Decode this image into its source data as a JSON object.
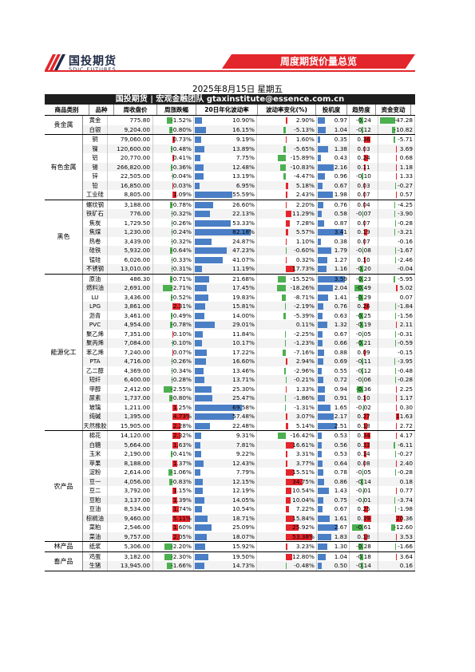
{
  "header": {
    "logo_cn": "国投期货",
    "logo_en": "SDIC FUTURES",
    "banner": "周度期货价量总览"
  },
  "date": "2025年8月15日 星期五",
  "title_bar": "国投期货 | 宏观金融团队 gtaxinstitute@essence.com.cn",
  "columns": [
    "商品类别",
    "品种",
    "周收盘价",
    "周涨跌幅",
    "20日年化波动率",
    "波动率变化(%)",
    "投机度",
    "趋势度",
    "资金变动"
  ],
  "groups": [
    {
      "name": "贵金属",
      "rows": [
        [
          "黄金",
          "775.80",
          "-1.52%",
          "10.90%",
          "2.90%",
          "0.97",
          "-0.24",
          "-47.28"
        ],
        [
          "白银",
          "9,204.00",
          "-0.80%",
          "16.15%",
          "-5.13%",
          "1.04",
          "-0.12",
          "-10.82"
        ]
      ]
    },
    {
      "name": "有色金属",
      "rows": [
        [
          "铜",
          "79,060.00",
          "0.73%",
          "9.19%",
          "1.60%",
          "0.35",
          "0.36",
          "-5.71"
        ],
        [
          "镍",
          "120,600.00",
          "-0.48%",
          "13.89%",
          "-5.65%",
          "1.38",
          "0.03",
          "3.69"
        ],
        [
          "铝",
          "20,770.00",
          "0.41%",
          "7.75%",
          "-15.89%",
          "0.43",
          "0.24",
          "0.68"
        ],
        [
          "锡",
          "266,820.00",
          "-0.36%",
          "12.48%",
          "-10.83%",
          "2.16",
          "0.11",
          "1.18"
        ],
        [
          "锌",
          "22,505.00",
          "-0.04%",
          "13.19%",
          "-4.47%",
          "0.96",
          "-0.10",
          "1.33"
        ],
        [
          "铅",
          "16,850.00",
          "0.03%",
          "6.95%",
          "5.18%",
          "0.67",
          "0.03",
          "-0.27"
        ],
        [
          "工业硅",
          "8,805.00",
          "1.09%",
          "55.59%",
          "2.43%",
          "1.98",
          "0.07",
          "0.57"
        ]
      ]
    },
    {
      "name": "黑色",
      "rows": [
        [
          "螺纹钢",
          "3,188.00",
          "-0.78%",
          "26.60%",
          "2.20%",
          "0.76",
          "0.04",
          "-4.25"
        ],
        [
          "铁矿石",
          "776.00",
          "-0.32%",
          "22.13%",
          "11.29%",
          "0.58",
          "-0.07",
          "-3.90"
        ],
        [
          "焦炭",
          "1,729.50",
          "-0.26%",
          "53.33%",
          "7.28%",
          "0.87",
          "0.07",
          "-0.28"
        ],
        [
          "焦煤",
          "1,230.00",
          "-0.24%",
          "82.18%",
          "5.57%",
          "3.41",
          "0.19",
          "-3.21"
        ],
        [
          "热卷",
          "3,439.00",
          "-0.32%",
          "24.87%",
          "1.10%",
          "0.38",
          "0.07",
          "-0.16"
        ],
        [
          "硅铁",
          "5,932.00",
          "-0.64%",
          "47.23%",
          "-0.60%",
          "1.79",
          "-0.08",
          "-1.67"
        ],
        [
          "锰硅",
          "6,026.00",
          "-0.33%",
          "41.07%",
          "0.32%",
          "1.27",
          "0.10",
          "-2.46"
        ],
        [
          "不锈钢",
          "13,010.00",
          "-0.31%",
          "11.19%",
          "17.73%",
          "1.16",
          "-0.20",
          "-0.04"
        ]
      ]
    },
    {
      "name": "能源化工",
      "rows": [
        [
          "原油",
          "486.30",
          "-0.71%",
          "21.68%",
          "-15.52%",
          "3.59",
          "-0.23",
          "-5.95"
        ],
        [
          "燃料油",
          "2,691.00",
          "-2.71%",
          "17.45%",
          "-18.26%",
          "2.04",
          "-0.49",
          "5.02"
        ],
        [
          "LU",
          "3,436.00",
          "-0.52%",
          "19.83%",
          "-8.71%",
          "1.41",
          "-0.29",
          "0.07"
        ],
        [
          "LPG",
          "3,861.00",
          "2.31%",
          "15.81%",
          "-2.19%",
          "0.76",
          "0.26",
          "-1.84"
        ],
        [
          "沥青",
          "3,461.00",
          "-0.49%",
          "14.00%",
          "-5.39%",
          "0.63",
          "-0.25",
          "-1.56"
        ],
        [
          "PVC",
          "4,954.00",
          "-0.78%",
          "29.01%",
          "0.11%",
          "1.32",
          "-0.19",
          "2.11"
        ],
        [
          "聚乙烯",
          "7,351.00",
          "0.10%",
          "11.84%",
          "-2.25%",
          "0.67",
          "-0.05",
          "-0.31"
        ],
        [
          "聚丙烯",
          "7,084.00",
          "-0.10%",
          "10.17%",
          "-1.23%",
          "0.66",
          "-0.21",
          "-0.59"
        ],
        [
          "苯乙烯",
          "7,240.00",
          "0.07%",
          "17.22%",
          "-7.16%",
          "0.88",
          "0.09",
          "-0.15"
        ],
        [
          "PTA",
          "4,716.00",
          "-0.26%",
          "16.60%",
          "2.94%",
          "0.69",
          "-0.11",
          "-3.95"
        ],
        [
          "乙二醇",
          "4,369.00",
          "-0.34%",
          "13.46%",
          "-2.96%",
          "0.55",
          "-0.12",
          "-0.48"
        ],
        [
          "短纤",
          "6,400.00",
          "-0.28%",
          "13.71%",
          "-0.21%",
          "0.72",
          "-0.06",
          "-0.28"
        ],
        [
          "甲醇",
          "2,412.00",
          "-2.55%",
          "25.30%",
          "1.33%",
          "0.94",
          "-0.36",
          "2.25"
        ],
        [
          "尿素",
          "1,737.00",
          "-0.80%",
          "25.47%",
          "-1.86%",
          "0.91",
          "0.10",
          "1.17"
        ],
        [
          "玻璃",
          "1,211.00",
          "1.25%",
          "69.58%",
          "-1.31%",
          "1.65",
          "-0.02",
          "0.30"
        ],
        [
          "纯碱",
          "1,395.00",
          "4.73%",
          "57.48%",
          "3.07%",
          "2.17",
          "0.27",
          "11.63"
        ],
        [
          "天然橡胶",
          "15,905.00",
          "2.28%",
          "22.48%",
          "5.14%",
          "2.51",
          "0.18",
          "2.72"
        ]
      ]
    },
    {
      "name": "农产品",
      "rows": [
        [
          "棉花",
          "14,120.00",
          "2.32%",
          "9.31%",
          "-16.42%",
          "0.53",
          "0.34",
          "4.17"
        ],
        [
          "白糖",
          "5,664.00",
          "1.63%",
          "7.81%",
          "16.61%",
          "0.56",
          "0.33",
          "-6.11"
        ],
        [
          "玉米",
          "2,190.00",
          "-0.41%",
          "9.22%",
          "3.31%",
          "0.53",
          "0.14",
          "-0.27"
        ],
        [
          "苹果",
          "8,188.00",
          "1.37%",
          "12.43%",
          "3.77%",
          "0.64",
          "0.08",
          "2.40"
        ],
        [
          "淀粉",
          "2,614.00",
          "-1.06%",
          "7.79%",
          "15.51%",
          "0.78",
          "-0.05",
          "-0.28"
        ],
        [
          "豆一",
          "4,056.00",
          "-0.83%",
          "12.15%",
          "34.75%",
          "0.86",
          "-0.14",
          "0.18"
        ],
        [
          "豆二",
          "3,792.00",
          "1.15%",
          "12.19%",
          "10.54%",
          "1.43",
          "-0.01",
          "0.77"
        ],
        [
          "豆粕",
          "3,137.00",
          "1.39%",
          "14.05%",
          "10.04%",
          "0.75",
          "-0.01",
          "-3.74"
        ],
        [
          "豆油",
          "8,534.00",
          "1.74%",
          "10.54%",
          "7.22%",
          "0.67",
          "0.25",
          "-1.98"
        ],
        [
          "棕榈油",
          "9,460.00",
          "5.11%",
          "18.71%",
          "15.84%",
          "1.61",
          "0.39",
          "20.36"
        ],
        [
          "菜粕",
          "2,546.00",
          "1.60%",
          "25.09%",
          "25.92%",
          "2.67",
          "-0.61",
          "-12.60"
        ],
        [
          "菜油",
          "9,757.00",
          "2.05%",
          "18.07%",
          "53.38%",
          "1.83",
          "0.18",
          "3.53"
        ]
      ]
    },
    {
      "name": "林产品",
      "rows": [
        [
          "纸浆",
          "5,306.00",
          "-2.20%",
          "15.92%",
          "3.23%",
          "1.30",
          "-0.28",
          "-1.66"
        ]
      ]
    },
    {
      "name": "畜产品",
      "rows": [
        [
          "鸡蛋",
          "3,182.00",
          "-2.30%",
          "19.50%",
          "12.80%",
          "1.04",
          "-0.18",
          "3.64"
        ],
        [
          "生猪",
          "13,945.00",
          "-1.66%",
          "14.73%",
          "-0.48%",
          "0.50",
          "-0.14",
          "0.16"
        ]
      ]
    }
  ],
  "colors": {
    "pos": "#e3262b",
    "neg": "#4caf50",
    "vol": "#4a7fc6",
    "accent": "#e3262b"
  }
}
